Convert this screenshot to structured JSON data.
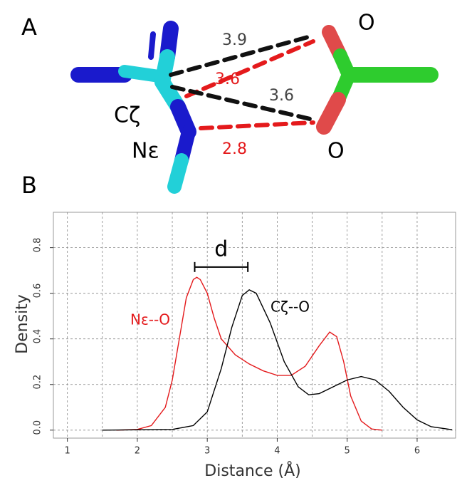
{
  "panel_a": {
    "label": "A",
    "atoms": {
      "cz": "Cζ",
      "ne": "Nε",
      "o_top": "O",
      "o_bottom": "O"
    },
    "distances": [
      3.9,
      3.6,
      3.6,
      2.8
    ]
  },
  "chart_data": {
    "type": "line",
    "panel_label": "B",
    "x_label": "Distance (Å)",
    "y_label": "Density",
    "xlim": [
      0.8,
      6.55
    ],
    "ylim": [
      -0.035,
      0.955
    ],
    "xticks": [
      1,
      2,
      3,
      4,
      5,
      6
    ],
    "yticks": [
      {
        "value": 0,
        "label": "0.0"
      },
      {
        "value": 0.2,
        "label": "0.2"
      },
      {
        "value": 0.4,
        "label": "0.4"
      },
      {
        "value": 0.6,
        "label": "0.6"
      },
      {
        "value": 0.8,
        "label": "0.8"
      }
    ],
    "grid": true,
    "series": [
      {
        "name": "Nε--O",
        "color": "#e41a1c",
        "x": [
          1.7,
          2.0,
          2.2,
          2.4,
          2.5,
          2.6,
          2.7,
          2.8,
          2.85,
          2.9,
          3.0,
          3.1,
          3.2,
          3.4,
          3.6,
          3.8,
          4.0,
          4.2,
          4.4,
          4.6,
          4.75,
          4.85,
          4.95,
          5.05,
          5.2,
          5.35,
          5.5
        ],
        "values": [
          0,
          0.003,
          0.02,
          0.1,
          0.22,
          0.4,
          0.58,
          0.66,
          0.67,
          0.66,
          0.6,
          0.49,
          0.4,
          0.33,
          0.29,
          0.26,
          0.24,
          0.24,
          0.28,
          0.37,
          0.43,
          0.41,
          0.3,
          0.15,
          0.04,
          0.005,
          0
        ]
      },
      {
        "name": "Cζ--O",
        "color": "#000000",
        "x": [
          1.5,
          2.5,
          2.8,
          3.0,
          3.2,
          3.35,
          3.5,
          3.6,
          3.7,
          3.9,
          4.1,
          4.3,
          4.45,
          4.6,
          4.8,
          5.0,
          5.2,
          5.4,
          5.6,
          5.8,
          6.0,
          6.2,
          6.5
        ],
        "values": [
          0,
          0.003,
          0.02,
          0.08,
          0.27,
          0.45,
          0.59,
          0.615,
          0.6,
          0.47,
          0.3,
          0.19,
          0.155,
          0.16,
          0.19,
          0.22,
          0.235,
          0.22,
          0.17,
          0.1,
          0.045,
          0.015,
          0.002
        ]
      }
    ],
    "annotation": {
      "text": "d",
      "x": [
        2.82,
        3.58
      ],
      "y": 0.715
    }
  }
}
